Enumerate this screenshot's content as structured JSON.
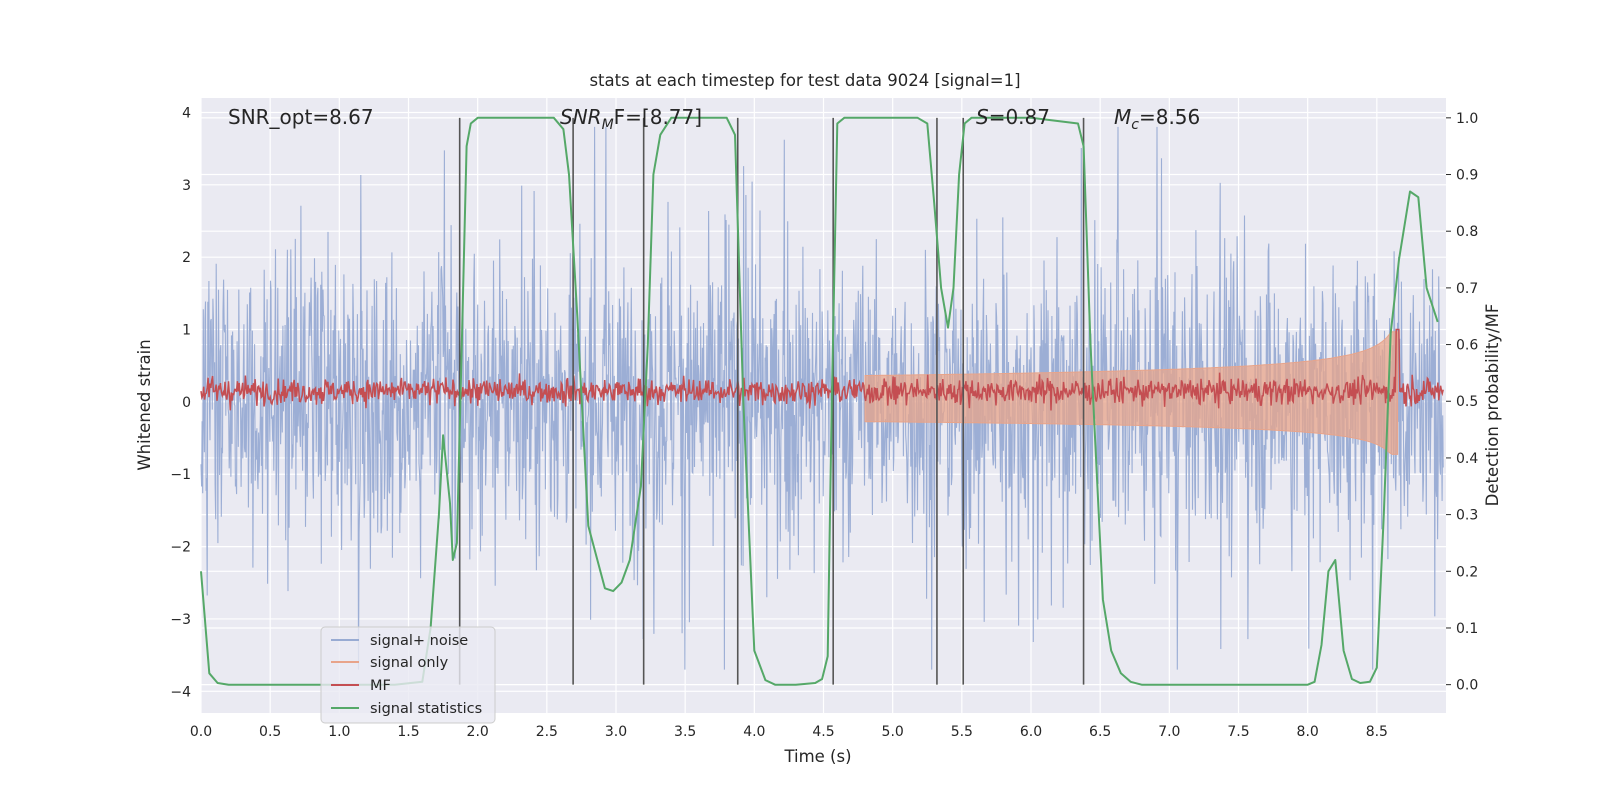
{
  "chart_data": {
    "type": "line",
    "title": "stats at each timestep for test data 9024 [signal=1]",
    "xlabel": "Time (s)",
    "ylabel": "Whitened strain",
    "y2label": "Detection probability/MF",
    "xlim": [
      0,
      9.0
    ],
    "ylim": [
      -4.3,
      4.2
    ],
    "y2lim": [
      -0.05,
      1.035
    ],
    "xticks": [
      0.0,
      0.5,
      1.0,
      1.5,
      2.0,
      2.5,
      3.0,
      3.5,
      4.0,
      4.5,
      5.0,
      5.5,
      6.0,
      6.5,
      7.0,
      7.5,
      8.0,
      8.5
    ],
    "xtick_labels": [
      "0.0",
      "0.5",
      "1.0",
      "1.5",
      "2.0",
      "2.5",
      "3.0",
      "3.5",
      "4.0",
      "4.5",
      "5.0",
      "5.5",
      "6.0",
      "6.5",
      "7.0",
      "7.5",
      "8.0",
      "8.5"
    ],
    "yticks": [
      -4,
      -3,
      -2,
      -1,
      0,
      1,
      2,
      3,
      4
    ],
    "ytick_labels": [
      "−4",
      "−3",
      "−2",
      "−1",
      "0",
      "1",
      "2",
      "3",
      "4"
    ],
    "y2ticks": [
      0.0,
      0.1,
      0.2,
      0.3,
      0.4,
      0.5,
      0.6,
      0.7,
      0.8,
      0.9,
      1.0
    ],
    "y2tick_labels": [
      "0.0",
      "0.1",
      "0.2",
      "0.3",
      "0.4",
      "0.5",
      "0.6",
      "0.7",
      "0.8",
      "0.9",
      "1.0"
    ],
    "grid": true,
    "legend_position": "bottom-left",
    "annotations": {
      "snr_opt": "SNR_opt=8.67",
      "snr_mf_sym": "SNR",
      "snr_mf_sub": "M",
      "snr_mf_rest": "F=[8.77]",
      "s_sym": "S",
      "s_rest": "=0.87",
      "mc_sym": "M",
      "mc_sub": "c",
      "mc_rest": "=8.56"
    },
    "detection_times": [
      1.87,
      2.69,
      3.2,
      3.88,
      4.57,
      5.32,
      5.51,
      6.38
    ],
    "series": [
      {
        "name": "signal+ noise",
        "color": "#98abd3",
        "axis": "left",
        "style": "noise",
        "amplitude_range": [
          -3.7,
          3.8
        ]
      },
      {
        "name": "signal only",
        "color": "#e8a48a",
        "axis": "left",
        "style": "chirp",
        "merger_time": 8.65,
        "peak_amplitude": 1.3
      },
      {
        "name": "MF",
        "color": "#c44e52",
        "axis": "left",
        "baseline": 0.15,
        "peak": 1.0
      },
      {
        "name": "signal statistics",
        "color": "#55a868",
        "axis": "right",
        "x": [
          0.0,
          0.06,
          0.12,
          0.2,
          0.5,
          1.0,
          1.4,
          1.6,
          1.66,
          1.72,
          1.75,
          1.8,
          1.82,
          1.85,
          1.88,
          1.92,
          1.95,
          2.0,
          2.1,
          2.55,
          2.62,
          2.66,
          2.72,
          2.8,
          2.92,
          2.98,
          3.04,
          3.1,
          3.18,
          3.23,
          3.27,
          3.32,
          3.4,
          3.5,
          3.8,
          3.86,
          3.92,
          4.0,
          4.08,
          4.15,
          4.3,
          4.44,
          4.49,
          4.53,
          4.56,
          4.6,
          4.65,
          4.72,
          5.0,
          5.18,
          5.25,
          5.3,
          5.35,
          5.4,
          5.44,
          5.48,
          5.52,
          5.57,
          5.62,
          5.7,
          6.0,
          6.34,
          6.38,
          6.43,
          6.48,
          6.52,
          6.58,
          6.65,
          6.72,
          6.8,
          7.0,
          7.5,
          8.0,
          8.05,
          8.1,
          8.15,
          8.2,
          8.26,
          8.32,
          8.38,
          8.45,
          8.5,
          8.55,
          8.6,
          8.66,
          8.74,
          8.8,
          8.86,
          8.94
        ],
        "values": [
          0.2,
          0.02,
          0.003,
          0.0,
          0.0,
          0.0,
          0.0,
          0.005,
          0.1,
          0.3,
          0.44,
          0.32,
          0.22,
          0.25,
          0.55,
          0.95,
          0.99,
          1.0,
          1.0,
          1.0,
          0.98,
          0.9,
          0.65,
          0.28,
          0.17,
          0.165,
          0.18,
          0.22,
          0.35,
          0.6,
          0.9,
          0.97,
          1.0,
          1.0,
          1.0,
          0.97,
          0.5,
          0.06,
          0.008,
          0.0,
          0.0,
          0.003,
          0.01,
          0.05,
          0.5,
          0.99,
          1.0,
          1.0,
          1.0,
          1.0,
          0.99,
          0.85,
          0.7,
          0.63,
          0.7,
          0.9,
          0.99,
          1.0,
          1.0,
          1.0,
          1.0,
          0.99,
          0.95,
          0.6,
          0.35,
          0.15,
          0.06,
          0.02,
          0.005,
          0.0,
          0.0,
          0.0,
          0.0,
          0.005,
          0.07,
          0.2,
          0.22,
          0.06,
          0.01,
          0.003,
          0.005,
          0.03,
          0.3,
          0.62,
          0.75,
          0.87,
          0.86,
          0.7,
          0.64
        ]
      }
    ]
  }
}
